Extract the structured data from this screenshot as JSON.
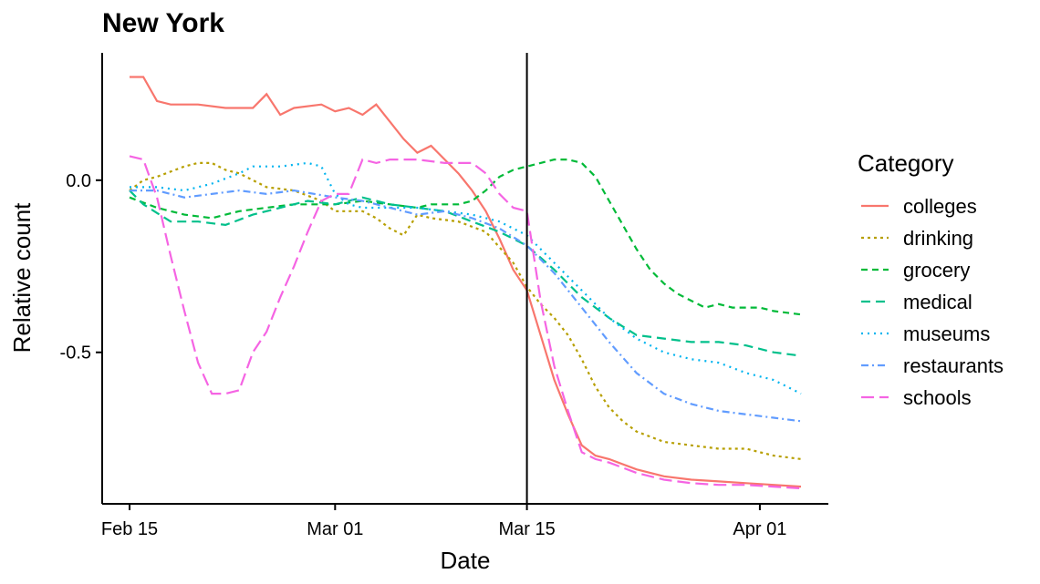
{
  "chart_data": {
    "type": "line",
    "title": "New York",
    "xlabel": "Date",
    "ylabel": "Relative count",
    "x_axis_type": "date",
    "x_ticks": [
      "Feb 15",
      "Mar 01",
      "Mar 15",
      "Apr 01"
    ],
    "y_ticks": [
      "0.0",
      "-0.5"
    ],
    "xlim": [
      "2020-02-13",
      "2020-04-06"
    ],
    "ylim": [
      -0.94,
      0.37
    ],
    "vline": "2020-03-15",
    "grid": false,
    "legend": {
      "title": "Category",
      "position": "right"
    },
    "series": [
      {
        "name": "colleges",
        "color": "#F8766D",
        "dash": "solid",
        "points": [
          [
            "2020-02-15",
            0.3
          ],
          [
            "2020-02-16",
            0.3
          ],
          [
            "2020-02-17",
            0.23
          ],
          [
            "2020-02-18",
            0.22
          ],
          [
            "2020-02-20",
            0.22
          ],
          [
            "2020-02-22",
            0.21
          ],
          [
            "2020-02-24",
            0.21
          ],
          [
            "2020-02-25",
            0.25
          ],
          [
            "2020-02-26",
            0.19
          ],
          [
            "2020-02-27",
            0.21
          ],
          [
            "2020-02-29",
            0.22
          ],
          [
            "2020-03-01",
            0.2
          ],
          [
            "2020-03-02",
            0.21
          ],
          [
            "2020-03-03",
            0.19
          ],
          [
            "2020-03-04",
            0.22
          ],
          [
            "2020-03-05",
            0.17
          ],
          [
            "2020-03-06",
            0.12
          ],
          [
            "2020-03-07",
            0.08
          ],
          [
            "2020-03-08",
            0.1
          ],
          [
            "2020-03-09",
            0.06
          ],
          [
            "2020-03-10",
            0.02
          ],
          [
            "2020-03-11",
            -0.03
          ],
          [
            "2020-03-12",
            -0.09
          ],
          [
            "2020-03-13",
            -0.17
          ],
          [
            "2020-03-14",
            -0.26
          ],
          [
            "2020-03-15",
            -0.32
          ],
          [
            "2020-03-16",
            -0.45
          ],
          [
            "2020-03-17",
            -0.58
          ],
          [
            "2020-03-18",
            -0.68
          ],
          [
            "2020-03-19",
            -0.77
          ],
          [
            "2020-03-20",
            -0.8
          ],
          [
            "2020-03-21",
            -0.81
          ],
          [
            "2020-03-23",
            -0.84
          ],
          [
            "2020-03-25",
            -0.86
          ],
          [
            "2020-03-27",
            -0.87
          ],
          [
            "2020-03-29",
            -0.875
          ],
          [
            "2020-03-31",
            -0.88
          ],
          [
            "2020-04-02",
            -0.885
          ],
          [
            "2020-04-04",
            -0.89
          ]
        ]
      },
      {
        "name": "drinking",
        "color": "#B79F00",
        "dash": "3,4",
        "points": [
          [
            "2020-02-15",
            -0.03
          ],
          [
            "2020-02-16",
            0.0
          ],
          [
            "2020-02-17",
            0.01
          ],
          [
            "2020-02-19",
            0.04
          ],
          [
            "2020-02-20",
            0.05
          ],
          [
            "2020-02-21",
            0.05
          ],
          [
            "2020-02-22",
            0.03
          ],
          [
            "2020-02-23",
            0.02
          ],
          [
            "2020-02-24",
            0.0
          ],
          [
            "2020-02-25",
            -0.02
          ],
          [
            "2020-02-27",
            -0.03
          ],
          [
            "2020-02-29",
            -0.06
          ],
          [
            "2020-03-01",
            -0.09
          ],
          [
            "2020-03-02",
            -0.09
          ],
          [
            "2020-03-03",
            -0.09
          ],
          [
            "2020-03-04",
            -0.11
          ],
          [
            "2020-03-05",
            -0.14
          ],
          [
            "2020-03-06",
            -0.16
          ],
          [
            "2020-03-07",
            -0.1
          ],
          [
            "2020-03-08",
            -0.11
          ],
          [
            "2020-03-10",
            -0.12
          ],
          [
            "2020-03-12",
            -0.15
          ],
          [
            "2020-03-14",
            -0.24
          ],
          [
            "2020-03-15",
            -0.31
          ],
          [
            "2020-03-16",
            -0.36
          ],
          [
            "2020-03-17",
            -0.4
          ],
          [
            "2020-03-18",
            -0.45
          ],
          [
            "2020-03-19",
            -0.52
          ],
          [
            "2020-03-20",
            -0.6
          ],
          [
            "2020-03-21",
            -0.66
          ],
          [
            "2020-03-22",
            -0.7
          ],
          [
            "2020-03-23",
            -0.73
          ],
          [
            "2020-03-25",
            -0.76
          ],
          [
            "2020-03-27",
            -0.77
          ],
          [
            "2020-03-29",
            -0.78
          ],
          [
            "2020-03-31",
            -0.78
          ],
          [
            "2020-04-02",
            -0.8
          ],
          [
            "2020-04-04",
            -0.81
          ]
        ]
      },
      {
        "name": "grocery",
        "color": "#00BA38",
        "dash": "7,5",
        "points": [
          [
            "2020-02-15",
            -0.05
          ],
          [
            "2020-02-17",
            -0.08
          ],
          [
            "2020-02-19",
            -0.1
          ],
          [
            "2020-02-21",
            -0.11
          ],
          [
            "2020-02-23",
            -0.09
          ],
          [
            "2020-02-25",
            -0.08
          ],
          [
            "2020-02-27",
            -0.07
          ],
          [
            "2020-03-01",
            -0.07
          ],
          [
            "2020-03-03",
            -0.06
          ],
          [
            "2020-03-05",
            -0.07
          ],
          [
            "2020-03-07",
            -0.08
          ],
          [
            "2020-03-08",
            -0.07
          ],
          [
            "2020-03-10",
            -0.07
          ],
          [
            "2020-03-11",
            -0.06
          ],
          [
            "2020-03-12",
            -0.03
          ],
          [
            "2020-03-13",
            0.01
          ],
          [
            "2020-03-14",
            0.03
          ],
          [
            "2020-03-15",
            0.04
          ],
          [
            "2020-03-16",
            0.05
          ],
          [
            "2020-03-17",
            0.06
          ],
          [
            "2020-03-18",
            0.06
          ],
          [
            "2020-03-19",
            0.05
          ],
          [
            "2020-03-20",
            0.01
          ],
          [
            "2020-03-21",
            -0.06
          ],
          [
            "2020-03-22",
            -0.13
          ],
          [
            "2020-03-23",
            -0.2
          ],
          [
            "2020-03-24",
            -0.26
          ],
          [
            "2020-03-25",
            -0.3
          ],
          [
            "2020-03-26",
            -0.33
          ],
          [
            "2020-03-27",
            -0.35
          ],
          [
            "2020-03-28",
            -0.37
          ],
          [
            "2020-03-29",
            -0.36
          ],
          [
            "2020-03-30",
            -0.37
          ],
          [
            "2020-04-01",
            -0.37
          ],
          [
            "2020-04-02",
            -0.38
          ],
          [
            "2020-04-04",
            -0.39
          ]
        ]
      },
      {
        "name": "medical",
        "color": "#00C08B",
        "dash": "10,6",
        "points": [
          [
            "2020-02-15",
            -0.03
          ],
          [
            "2020-02-16",
            -0.07
          ],
          [
            "2020-02-18",
            -0.12
          ],
          [
            "2020-02-20",
            -0.12
          ],
          [
            "2020-02-22",
            -0.13
          ],
          [
            "2020-02-24",
            -0.1
          ],
          [
            "2020-02-26",
            -0.08
          ],
          [
            "2020-02-28",
            -0.06
          ],
          [
            "2020-03-01",
            -0.07
          ],
          [
            "2020-03-03",
            -0.05
          ],
          [
            "2020-03-05",
            -0.07
          ],
          [
            "2020-03-07",
            -0.08
          ],
          [
            "2020-03-09",
            -0.09
          ],
          [
            "2020-03-11",
            -0.12
          ],
          [
            "2020-03-13",
            -0.15
          ],
          [
            "2020-03-15",
            -0.19
          ],
          [
            "2020-03-17",
            -0.26
          ],
          [
            "2020-03-19",
            -0.34
          ],
          [
            "2020-03-21",
            -0.4
          ],
          [
            "2020-03-23",
            -0.45
          ],
          [
            "2020-03-25",
            -0.46
          ],
          [
            "2020-03-27",
            -0.47
          ],
          [
            "2020-03-29",
            -0.47
          ],
          [
            "2020-03-31",
            -0.48
          ],
          [
            "2020-04-02",
            -0.5
          ],
          [
            "2020-04-04",
            -0.51
          ]
        ]
      },
      {
        "name": "museums",
        "color": "#00B4EF",
        "dash": "2,5",
        "points": [
          [
            "2020-02-15",
            -0.02
          ],
          [
            "2020-02-17",
            -0.02
          ],
          [
            "2020-02-19",
            -0.03
          ],
          [
            "2020-02-21",
            -0.01
          ],
          [
            "2020-02-23",
            0.02
          ],
          [
            "2020-02-24",
            0.04
          ],
          [
            "2020-02-26",
            0.04
          ],
          [
            "2020-02-28",
            0.05
          ],
          [
            "2020-02-29",
            0.04
          ],
          [
            "2020-03-01",
            -0.04
          ],
          [
            "2020-03-02",
            -0.07
          ],
          [
            "2020-03-03",
            -0.08
          ],
          [
            "2020-03-05",
            -0.08
          ],
          [
            "2020-03-07",
            -0.08
          ],
          [
            "2020-03-09",
            -0.09
          ],
          [
            "2020-03-11",
            -0.1
          ],
          [
            "2020-03-13",
            -0.12
          ],
          [
            "2020-03-15",
            -0.16
          ],
          [
            "2020-03-17",
            -0.24
          ],
          [
            "2020-03-19",
            -0.32
          ],
          [
            "2020-03-21",
            -0.4
          ],
          [
            "2020-03-23",
            -0.46
          ],
          [
            "2020-03-25",
            -0.5
          ],
          [
            "2020-03-27",
            -0.52
          ],
          [
            "2020-03-29",
            -0.53
          ],
          [
            "2020-03-31",
            -0.56
          ],
          [
            "2020-04-02",
            -0.58
          ],
          [
            "2020-04-04",
            -0.62
          ]
        ]
      },
      {
        "name": "restaurants",
        "color": "#619CFF",
        "dash": "8,4,2,4",
        "points": [
          [
            "2020-02-15",
            -0.03
          ],
          [
            "2020-02-17",
            -0.03
          ],
          [
            "2020-02-19",
            -0.05
          ],
          [
            "2020-02-21",
            -0.04
          ],
          [
            "2020-02-23",
            -0.03
          ],
          [
            "2020-02-25",
            -0.04
          ],
          [
            "2020-02-27",
            -0.03
          ],
          [
            "2020-03-01",
            -0.05
          ],
          [
            "2020-03-03",
            -0.06
          ],
          [
            "2020-03-05",
            -0.08
          ],
          [
            "2020-03-07",
            -0.1
          ],
          [
            "2020-03-09",
            -0.09
          ],
          [
            "2020-03-11",
            -0.11
          ],
          [
            "2020-03-13",
            -0.14
          ],
          [
            "2020-03-15",
            -0.19
          ],
          [
            "2020-03-17",
            -0.27
          ],
          [
            "2020-03-19",
            -0.37
          ],
          [
            "2020-03-21",
            -0.47
          ],
          [
            "2020-03-23",
            -0.56
          ],
          [
            "2020-03-25",
            -0.62
          ],
          [
            "2020-03-27",
            -0.65
          ],
          [
            "2020-03-29",
            -0.67
          ],
          [
            "2020-03-31",
            -0.68
          ],
          [
            "2020-04-02",
            -0.69
          ],
          [
            "2020-04-04",
            -0.7
          ]
        ]
      },
      {
        "name": "schools",
        "color": "#F564E3",
        "dash": "14,6",
        "points": [
          [
            "2020-02-15",
            0.07
          ],
          [
            "2020-02-16",
            0.06
          ],
          [
            "2020-02-17",
            -0.05
          ],
          [
            "2020-02-18",
            -0.22
          ],
          [
            "2020-02-19",
            -0.38
          ],
          [
            "2020-02-20",
            -0.53
          ],
          [
            "2020-02-21",
            -0.62
          ],
          [
            "2020-02-22",
            -0.62
          ],
          [
            "2020-02-23",
            -0.61
          ],
          [
            "2020-02-24",
            -0.5
          ],
          [
            "2020-02-25",
            -0.44
          ],
          [
            "2020-02-26",
            -0.34
          ],
          [
            "2020-02-27",
            -0.25
          ],
          [
            "2020-02-28",
            -0.15
          ],
          [
            "2020-02-29",
            -0.06
          ],
          [
            "2020-03-01",
            -0.04
          ],
          [
            "2020-03-02",
            -0.04
          ],
          [
            "2020-03-03",
            0.06
          ],
          [
            "2020-03-04",
            0.05
          ],
          [
            "2020-03-05",
            0.06
          ],
          [
            "2020-03-07",
            0.06
          ],
          [
            "2020-03-09",
            0.05
          ],
          [
            "2020-03-11",
            0.05
          ],
          [
            "2020-03-12",
            0.02
          ],
          [
            "2020-03-13",
            -0.04
          ],
          [
            "2020-03-14",
            -0.08
          ],
          [
            "2020-03-15",
            -0.09
          ],
          [
            "2020-03-16",
            -0.35
          ],
          [
            "2020-03-17",
            -0.54
          ],
          [
            "2020-03-18",
            -0.67
          ],
          [
            "2020-03-19",
            -0.79
          ],
          [
            "2020-03-20",
            -0.81
          ],
          [
            "2020-03-21",
            -0.82
          ],
          [
            "2020-03-23",
            -0.85
          ],
          [
            "2020-03-25",
            -0.87
          ],
          [
            "2020-03-27",
            -0.88
          ],
          [
            "2020-03-29",
            -0.885
          ],
          [
            "2020-03-31",
            -0.885
          ],
          [
            "2020-04-02",
            -0.89
          ],
          [
            "2020-04-04",
            -0.895
          ]
        ]
      }
    ]
  }
}
